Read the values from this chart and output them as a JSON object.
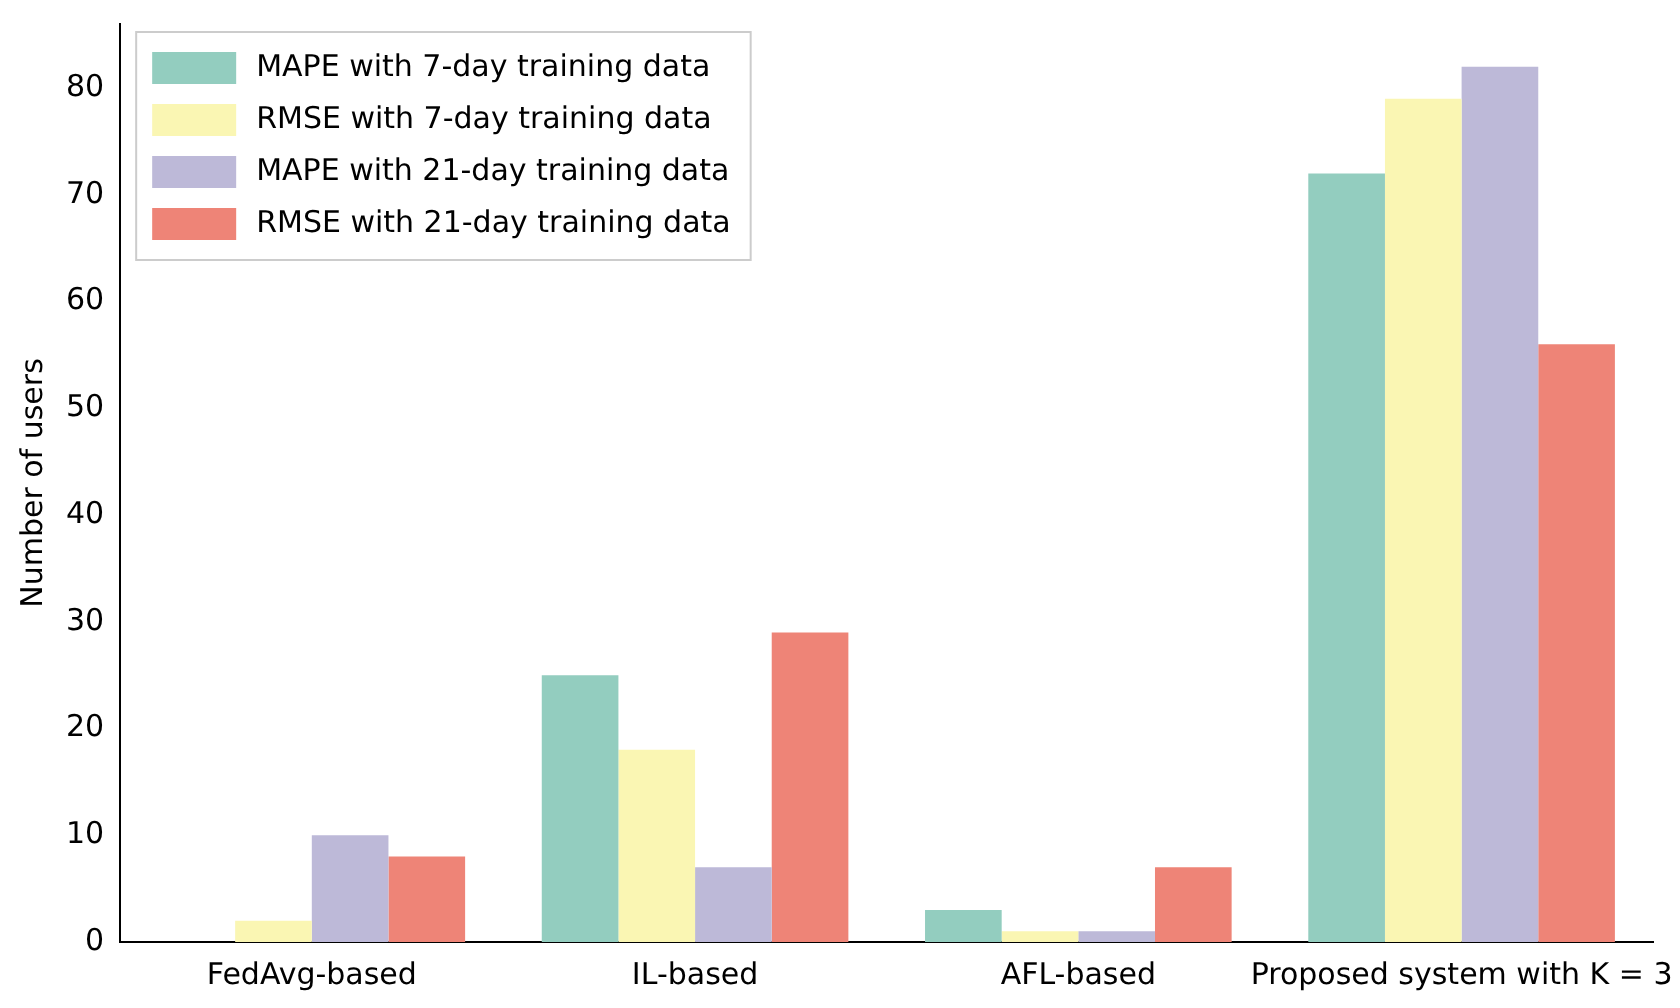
{
  "chart_data": {
    "type": "bar",
    "ylabel": "Number of users",
    "categories": [
      "FedAvg-based",
      "IL-based",
      "AFL-based",
      "Proposed system with K = 3"
    ],
    "series": [
      {
        "name": "MAPE with 7-day training data",
        "color": "#93cdbf",
        "values": [
          0,
          25,
          3,
          72
        ]
      },
      {
        "name": "RMSE with 7-day training data",
        "color": "#faf6b3",
        "values": [
          2,
          18,
          1,
          79
        ]
      },
      {
        "name": "MAPE with 21-day training data",
        "color": "#bdb9d8",
        "values": [
          10,
          7,
          1,
          82
        ]
      },
      {
        "name": "RMSE with 21-day training data",
        "color": "#ee8477",
        "values": [
          8,
          29,
          7,
          56
        ]
      }
    ],
    "ylim": [
      0,
      86
    ],
    "yticks": [
      0,
      10,
      20,
      30,
      40,
      50,
      60,
      70,
      80
    ],
    "grid": false,
    "legend": "top left"
  }
}
